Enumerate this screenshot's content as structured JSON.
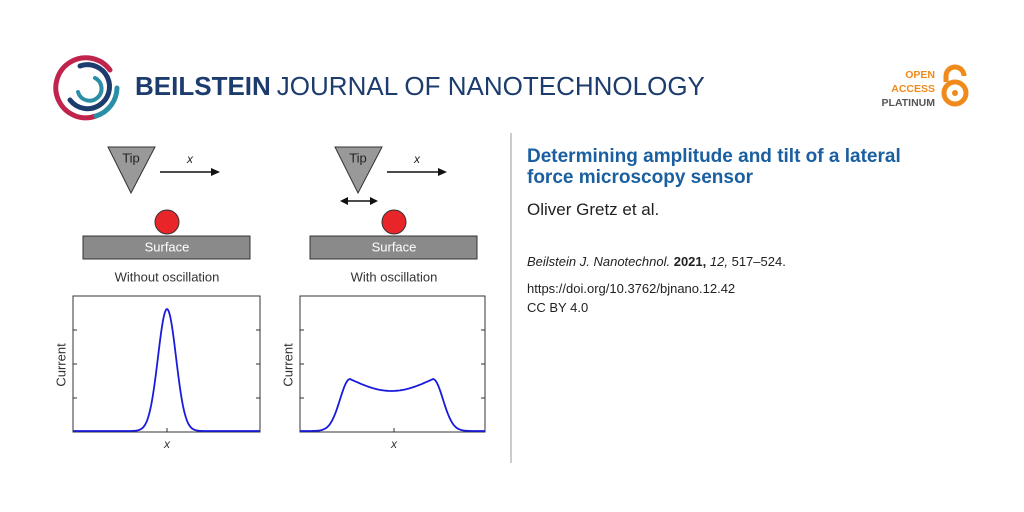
{
  "header": {
    "brand_bold": "BEILSTEIN",
    "brand_light": "JOURNAL OF NANOTECHNOLOGY",
    "badge": [
      "OPEN",
      "ACCESS",
      "PLATINUM"
    ]
  },
  "figure": {
    "panels": [
      {
        "tip": "Tip",
        "arrow_label": "x",
        "surface": "Surface",
        "caption": "Without oscillation",
        "y_label": "Current",
        "x_label": "x"
      },
      {
        "tip": "Tip",
        "arrow_label": "x",
        "surface": "Surface",
        "caption": "With oscillation",
        "y_label": "Current",
        "x_label": "x"
      }
    ]
  },
  "article": {
    "title": "Determining amplitude and tilt of a lateral force microscopy sensor",
    "authors": "Oliver Gretz et al.",
    "citation": {
      "journal": "Beilstein J. Nanotechnol.",
      "year": "2021,",
      "volume": "12,",
      "pages": "517–524."
    },
    "doi": "https://doi.org/10.3762/bjnano.12.42",
    "license": "CC BY 4.0"
  }
}
